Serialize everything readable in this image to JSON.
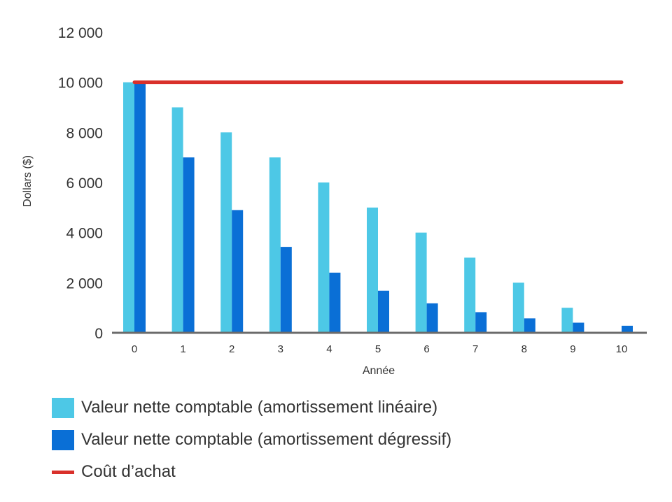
{
  "chart_data": {
    "type": "bar",
    "xlabel": "Année",
    "ylabel": "Dollars ($)",
    "categories": [
      "0",
      "1",
      "2",
      "3",
      "4",
      "5",
      "6",
      "7",
      "8",
      "9",
      "10"
    ],
    "ylim": [
      0,
      12000
    ],
    "yticks": [
      0,
      2000,
      4000,
      6000,
      8000,
      10000,
      12000
    ],
    "ytick_labels": [
      "0",
      "2 000",
      "4 000",
      "6 000",
      "8 000",
      "10 000",
      "12 000"
    ],
    "grid": false,
    "legend_position": "bottom",
    "series": [
      {
        "name": "Valeur nette comptable (amortissement linéaire)",
        "type": "bar",
        "color": "#4dc8e6",
        "values": [
          10000,
          9000,
          8000,
          7000,
          6000,
          5000,
          4000,
          3000,
          2000,
          1000,
          0
        ]
      },
      {
        "name": "Valeur nette comptable (amortissement dégressif)",
        "type": "bar",
        "color": "#0a6fd6",
        "values": [
          10000,
          7000,
          4900,
          3430,
          2401,
          1681,
          1176,
          824,
          576,
          404,
          282
        ]
      },
      {
        "name": "Coût d’achat",
        "type": "line",
        "color": "#d9302b",
        "values": [
          10000,
          10000,
          10000,
          10000,
          10000,
          10000,
          10000,
          10000,
          10000,
          10000,
          10000
        ]
      }
    ],
    "axis_color": "#6b6b6b"
  }
}
